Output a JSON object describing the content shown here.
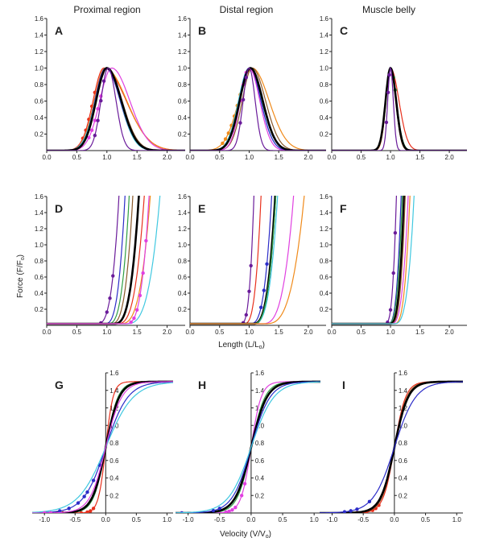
{
  "figure": {
    "column_titles": [
      "Proximal region",
      "Distal region",
      "Muscle belly"
    ],
    "ylabel": "Force (F/F",
    "ylabel_sub": "o",
    "ylabel_end": ")",
    "xlabel_length": "Length (L/L",
    "xlabel_length_sub": "o",
    "xlabel_length_end": ")",
    "xlabel_velocity": "Velocity (V/V",
    "xlabel_velocity_sub": "o",
    "xlabel_velocity_end": ")"
  },
  "chart_data": [
    {
      "id": "A",
      "type": "line",
      "panel_label": "A",
      "kind": "active",
      "xlim": [
        0,
        2.3
      ],
      "ylim": [
        0,
        1.6
      ],
      "xticks": [
        "0.0",
        "0.5",
        "1.0",
        "1.5",
        "2.0"
      ],
      "yticks": [
        "0.2",
        "0.4",
        "0.6",
        "0.8",
        "1.0",
        "1.2",
        "1.4",
        "1.6"
      ],
      "series": [
        {
          "color": "#e8301c",
          "center": 0.95,
          "width_left": 0.3,
          "width_right": 0.62,
          "points_x": [
            0.6,
            0.65,
            0.7,
            0.75,
            0.8
          ]
        },
        {
          "color": "#f08a1a",
          "center": 0.97,
          "width_left": 0.3,
          "width_right": 0.6
        },
        {
          "color": "#e040e0",
          "center": 1.08,
          "width_left": 0.33,
          "width_right": 0.5,
          "points_x": [
            0.7,
            0.75,
            0.8,
            0.85,
            0.9
          ]
        },
        {
          "color": "#2c2cc8",
          "center": 0.98,
          "width_left": 0.3,
          "width_right": 0.4
        },
        {
          "color": "#2f9e44",
          "center": 1.0,
          "width_left": 0.3,
          "width_right": 0.4
        },
        {
          "color": "#40c8e0",
          "center": 1.0,
          "width_left": 0.32,
          "width_right": 0.38
        },
        {
          "color": "#8b5a2b",
          "center": 1.0,
          "width_left": 0.3,
          "width_right": 0.42
        },
        {
          "color": "#000000",
          "center": 1.0,
          "width_left": 0.3,
          "width_right": 0.4,
          "bold": true
        },
        {
          "color": "#6a1b9a",
          "center": 1.02,
          "width_left": 0.2,
          "width_right": 0.22,
          "points_x": [
            0.8,
            0.85,
            0.9,
            0.95
          ]
        }
      ]
    },
    {
      "id": "B",
      "type": "line",
      "panel_label": "B",
      "kind": "active",
      "xlim": [
        0,
        2.3
      ],
      "ylim": [
        0,
        1.6
      ],
      "xticks": [
        "0.0",
        "0.5",
        "1.0",
        "1.5",
        "2.0"
      ],
      "yticks": [
        "0.2",
        "0.4",
        "0.6",
        "0.8",
        "1.0",
        "1.2",
        "1.4",
        "1.6"
      ],
      "series": [
        {
          "color": "#f08a1a",
          "center": 1.05,
          "width_left": 0.38,
          "width_right": 0.48,
          "points_x": [
            0.55,
            0.6,
            0.65,
            0.7,
            0.75,
            0.8,
            0.85
          ]
        },
        {
          "color": "#2f9e44",
          "center": 1.0,
          "width_left": 0.3,
          "width_right": 0.36
        },
        {
          "color": "#40c8e0",
          "center": 1.0,
          "width_left": 0.3,
          "width_right": 0.33
        },
        {
          "color": "#2c2cc8",
          "center": 1.0,
          "width_left": 0.28,
          "width_right": 0.33
        },
        {
          "color": "#8b5a2b",
          "center": 1.05,
          "width_left": 0.28,
          "width_right": 0.38
        },
        {
          "color": "#e040e0",
          "center": 1.0,
          "width_left": 0.25,
          "width_right": 0.3,
          "points_x": [
            0.85,
            0.9,
            0.95
          ]
        },
        {
          "color": "#000000",
          "center": 1.02,
          "width_left": 0.3,
          "width_right": 0.35,
          "bold": true
        },
        {
          "color": "#6a1b9a",
          "center": 1.0,
          "width_left": 0.17,
          "width_right": 0.17,
          "points_x": [
            0.85,
            0.9,
            0.95
          ]
        }
      ]
    },
    {
      "id": "C",
      "type": "line",
      "panel_label": "C",
      "kind": "active",
      "xlim": [
        0,
        2.3
      ],
      "ylim": [
        0,
        1.6
      ],
      "xticks": [
        "0.0",
        "0.5",
        "1.0",
        "1.5",
        "2.0"
      ],
      "yticks": [
        "0.2",
        "0.4",
        "0.6",
        "0.8",
        "1.0",
        "1.2",
        "1.4",
        "1.6"
      ],
      "series": [
        {
          "color": "#e8301c",
          "center": 1.0,
          "width_left": 0.13,
          "width_right": 0.24
        },
        {
          "color": "#2f9e44",
          "center": 1.0,
          "width_left": 0.14,
          "width_right": 0.17,
          "points_x": [
            1.05,
            1.08
          ]
        },
        {
          "color": "#40c8e0",
          "center": 1.0,
          "width_left": 0.14,
          "width_right": 0.16
        },
        {
          "color": "#2c2cc8",
          "center": 1.0,
          "width_left": 0.14,
          "width_right": 0.15
        },
        {
          "color": "#f08a1a",
          "center": 1.0,
          "width_left": 0.13,
          "width_right": 0.15
        },
        {
          "color": "#000000",
          "center": 1.0,
          "width_left": 0.14,
          "width_right": 0.16,
          "bold": true
        },
        {
          "color": "#6a1b9a",
          "center": 1.0,
          "width_left": 0.08,
          "width_right": 0.08,
          "points_x": [
            0.93,
            0.96,
            0.98
          ]
        }
      ]
    },
    {
      "id": "D",
      "type": "line",
      "panel_label": "D",
      "kind": "passive",
      "xlim": [
        0,
        2.3
      ],
      "ylim": [
        0,
        1.6
      ],
      "xticks": [
        "0.0",
        "0.5",
        "1.0",
        "1.5",
        "2.0"
      ],
      "yticks": [
        "0.2",
        "0.4",
        "0.6",
        "0.8",
        "1.0",
        "1.2",
        "1.4",
        "1.6"
      ],
      "series": [
        {
          "color": "#6a1b9a",
          "onset": 0.82,
          "reach": 1.2,
          "points_x": [
            0.9,
            1.0,
            1.05,
            1.1
          ]
        },
        {
          "color": "#2c2cc8",
          "onset": 0.95,
          "reach": 1.3
        },
        {
          "color": "#2f9e44",
          "onset": 1.0,
          "reach": 1.37
        },
        {
          "color": "#8b5a2b",
          "onset": 1.05,
          "reach": 1.43
        },
        {
          "color": "#000000",
          "onset": 1.1,
          "reach": 1.53,
          "bold": true
        },
        {
          "color": "#e8301c",
          "onset": 1.15,
          "reach": 1.62
        },
        {
          "color": "#f08a1a",
          "onset": 1.2,
          "reach": 1.72
        },
        {
          "color": "#40c8e0",
          "onset": 1.3,
          "reach": 1.88
        },
        {
          "color": "#e040e0",
          "onset": 1.3,
          "reach": 1.7,
          "points_x": [
            1.4,
            1.45,
            1.5,
            1.55,
            1.6,
            1.65
          ]
        }
      ]
    },
    {
      "id": "E",
      "type": "line",
      "panel_label": "E",
      "kind": "passive",
      "xlim": [
        0,
        2.3
      ],
      "ylim": [
        0,
        1.6
      ],
      "xticks": [
        "0.0",
        "0.5",
        "1.0",
        "1.5",
        "2.0"
      ],
      "yticks": [
        "0.2",
        "0.4",
        "0.6",
        "0.8",
        "1.0",
        "1.2",
        "1.4",
        "1.6"
      ],
      "series": [
        {
          "color": "#6a1b9a",
          "onset": 0.85,
          "reach": 1.08,
          "points_x": [
            0.9,
            0.95,
            1.0,
            1.03
          ]
        },
        {
          "color": "#e8301c",
          "onset": 0.9,
          "reach": 1.2
        },
        {
          "color": "#2c2cc8",
          "onset": 1.0,
          "reach": 1.38,
          "points_x": [
            1.2,
            1.25,
            1.3
          ]
        },
        {
          "color": "#000000",
          "onset": 1.05,
          "reach": 1.44,
          "bold": true
        },
        {
          "color": "#40c8e0",
          "onset": 1.05,
          "reach": 1.48
        },
        {
          "color": "#2f9e44",
          "onset": 1.05,
          "reach": 1.45
        },
        {
          "color": "#e040e0",
          "onset": 1.2,
          "reach": 1.75
        },
        {
          "color": "#f08a1a",
          "onset": 1.25,
          "reach": 1.93
        }
      ]
    },
    {
      "id": "F",
      "type": "line",
      "panel_label": "F",
      "kind": "passive",
      "xlim": [
        0,
        2.3
      ],
      "ylim": [
        0,
        1.6
      ],
      "xticks": [
        "0.0",
        "0.5",
        "1.0",
        "1.5",
        "2.0"
      ],
      "yticks": [
        "0.2",
        "0.4",
        "0.6",
        "0.8",
        "1.0",
        "1.2",
        "1.4",
        "1.6"
      ],
      "series": [
        {
          "color": "#6a1b9a",
          "onset": 0.9,
          "reach": 1.1,
          "points_x": [
            0.95,
            1.0,
            1.05,
            1.08
          ]
        },
        {
          "color": "#2c2cc8",
          "onset": 0.95,
          "reach": 1.18
        },
        {
          "color": "#2f9e44",
          "onset": 0.95,
          "reach": 1.2
        },
        {
          "color": "#000000",
          "onset": 0.98,
          "reach": 1.23,
          "bold": true
        },
        {
          "color": "#8b5a2b",
          "onset": 1.0,
          "reach": 1.25
        },
        {
          "color": "#e040e0",
          "onset": 1.0,
          "reach": 1.3
        },
        {
          "color": "#f08a1a",
          "onset": 1.05,
          "reach": 1.33
        },
        {
          "color": "#40c8e0",
          "onset": 1.05,
          "reach": 1.4
        }
      ]
    },
    {
      "id": "G",
      "type": "line",
      "panel_label": "G",
      "kind": "velocity",
      "xlim": [
        -1.2,
        1.1
      ],
      "ylim": [
        0,
        1.6
      ],
      "xticks": [
        "-1.0",
        "-0.5",
        "0.0",
        "0.5",
        "1.0"
      ],
      "yticks": [
        "0.2",
        "0.4",
        "0.6",
        "0.8",
        "1.0",
        "1.2",
        "1.4",
        "1.6"
      ],
      "series": [
        {
          "color": "#e8301c",
          "k": 0.12,
          "points_x": [
            -0.9,
            -0.8,
            -0.7,
            -0.6,
            -0.5,
            -0.4,
            -0.3,
            -0.25,
            -0.2
          ]
        },
        {
          "color": "#2f9e44",
          "k": 0.2
        },
        {
          "color": "#000000",
          "k": 0.22,
          "bold": true
        },
        {
          "color": "#2c2cc8",
          "k": 0.36,
          "points_x": [
            -0.75,
            -0.6,
            -0.45,
            -0.35,
            -0.3,
            -0.2,
            -0.1
          ]
        },
        {
          "color": "#40c8e0",
          "k": 0.45
        },
        {
          "color": "#e040e0",
          "k": 0.26,
          "points_x": [
            -1.0,
            -0.9
          ]
        }
      ]
    },
    {
      "id": "H",
      "type": "line",
      "panel_label": "H",
      "kind": "velocity",
      "xlim": [
        -1.2,
        1.1
      ],
      "ylim": [
        0,
        1.6
      ],
      "xticks": [
        "-1.0",
        "-0.5",
        "0.0",
        "0.5",
        "1.0"
      ],
      "yticks": [
        "0.2",
        "0.4",
        "0.6",
        "0.8",
        "1.0",
        "1.2",
        "1.4",
        "1.6"
      ],
      "series": [
        {
          "color": "#e040e0",
          "k": 0.16,
          "points_x": [
            -0.5,
            -0.4,
            -0.35,
            -0.3,
            -0.25,
            -0.15,
            -0.1
          ]
        },
        {
          "color": "#2f9e44",
          "k": 0.22
        },
        {
          "color": "#000000",
          "k": 0.25,
          "bold": true
        },
        {
          "color": "#2c2cc8",
          "k": 0.3,
          "points_x": [
            -1.1,
            -0.6,
            -0.5
          ]
        },
        {
          "color": "#40c8e0",
          "k": 0.36
        }
      ]
    },
    {
      "id": "I",
      "type": "line",
      "panel_label": "I",
      "kind": "velocity",
      "xlim": [
        -1.2,
        1.1
      ],
      "ylim": [
        0,
        1.6
      ],
      "xticks": [
        "-1.0",
        "-0.5",
        "0.0",
        "0.5",
        "1.0"
      ],
      "yticks": [
        "0.2",
        "0.4",
        "0.6",
        "0.8",
        "1.0",
        "1.2",
        "1.4",
        "1.6"
      ],
      "series": [
        {
          "color": "#e8301c",
          "k": 0.18,
          "points_x": [
            -0.6,
            -0.5,
            -0.45,
            -0.35,
            -0.3,
            -0.25
          ]
        },
        {
          "color": "#8b5a2b",
          "k": 0.2
        },
        {
          "color": "#000000",
          "k": 0.22,
          "bold": true
        },
        {
          "color": "#2c2cc8",
          "k": 0.34,
          "points_x": [
            -0.8,
            -0.7,
            -0.6,
            -0.4
          ]
        }
      ]
    }
  ]
}
